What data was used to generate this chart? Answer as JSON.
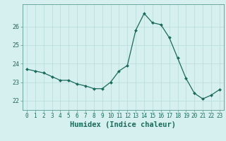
{
  "x": [
    0,
    1,
    2,
    3,
    4,
    5,
    6,
    7,
    8,
    9,
    10,
    11,
    12,
    13,
    14,
    15,
    16,
    17,
    18,
    19,
    20,
    21,
    22,
    23
  ],
  "y": [
    23.7,
    23.6,
    23.5,
    23.3,
    23.1,
    23.1,
    22.9,
    22.8,
    22.65,
    22.65,
    23.0,
    23.6,
    23.9,
    25.8,
    26.7,
    26.2,
    26.1,
    25.4,
    24.3,
    23.2,
    22.4,
    22.1,
    22.3,
    22.6
  ],
  "line_color": "#1a6b5a",
  "marker": "D",
  "marker_size": 2.0,
  "bg_color": "#d6f0ef",
  "grid_color": "#b8dbd8",
  "xlabel": "Humidex (Indice chaleur)",
  "ylim": [
    21.5,
    27.2
  ],
  "yticks": [
    22,
    23,
    24,
    25,
    26
  ],
  "xticks": [
    0,
    1,
    2,
    3,
    4,
    5,
    6,
    7,
    8,
    9,
    10,
    11,
    12,
    13,
    14,
    15,
    16,
    17,
    18,
    19,
    20,
    21,
    22,
    23
  ],
  "tick_color": "#1a6b5a",
  "tick_fontsize": 5.5,
  "xlabel_fontsize": 7.5,
  "axis_color": "#5a9a90",
  "linewidth": 0.9
}
